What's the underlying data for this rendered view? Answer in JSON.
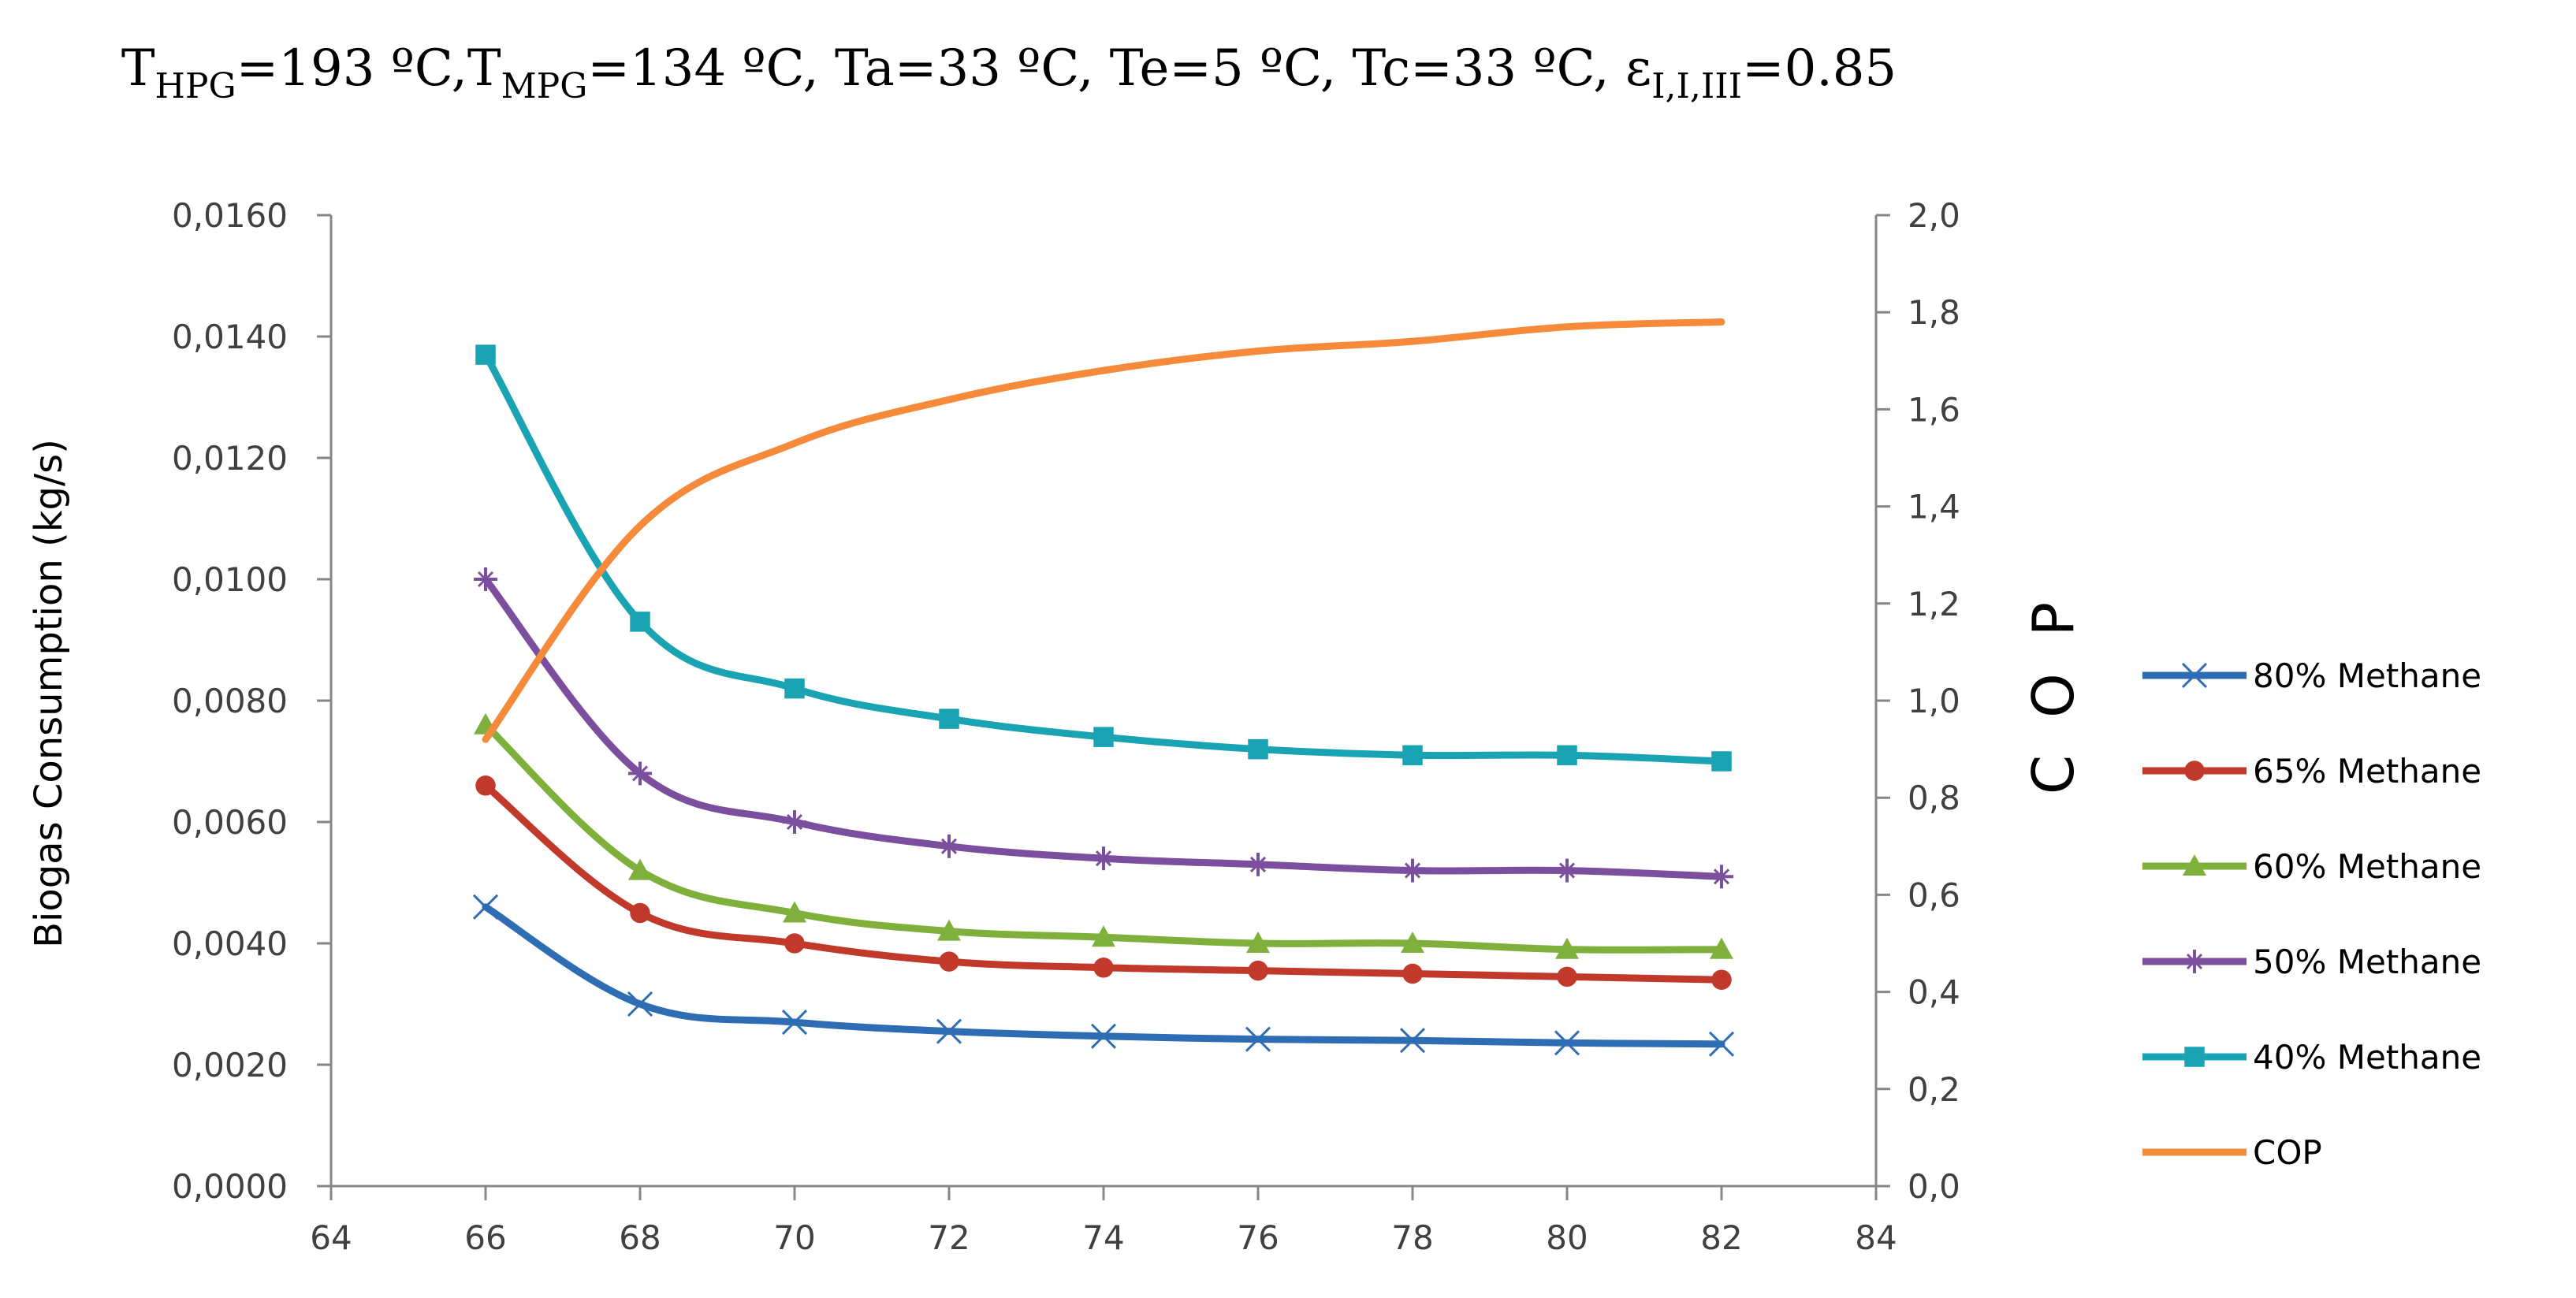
{
  "chart_data": {
    "type": "line",
    "title": "THPG=193 ºC,TMPG=134 ºC, Ta=33 ºC, Te=5 ºC, Tc=33 ºC, εI,I,III=0.85",
    "title_parts": {
      "t_hpg_main": "T",
      "t_hpg_sub": "HPG",
      "t_hpg_rest": "=193 ºC,",
      "t_mpg_main": "T",
      "t_mpg_sub": "MPG",
      "t_mpg_rest": "=134 ºC, Ta=33 ºC, Te=5 ºC, Tc=33 ºC, ",
      "eps_main": "ε",
      "eps_sub": "I,I,III",
      "eps_rest": "=0.85"
    },
    "xlabel": "",
    "ylabel": "Biogas Consumption (kg/s)",
    "y2label": "C O P",
    "xlim": [
      64,
      84
    ],
    "ylim": [
      0,
      0.016
    ],
    "y2lim": [
      0,
      2.0
    ],
    "x_ticks": [
      "64",
      "66",
      "68",
      "70",
      "72",
      "74",
      "76",
      "78",
      "80",
      "82",
      "84"
    ],
    "x_tick_values": [
      64,
      66,
      68,
      70,
      72,
      74,
      76,
      78,
      80,
      82,
      84
    ],
    "y_ticks": [
      "0,0000",
      "0,0020",
      "0,0040",
      "0,0060",
      "0,0080",
      "0,0100",
      "0,0120",
      "0,0140",
      "0,0160"
    ],
    "y_tick_values": [
      0,
      0.002,
      0.004,
      0.006,
      0.008,
      0.01,
      0.012,
      0.014,
      0.016
    ],
    "y2_ticks": [
      "0,0",
      "0,2",
      "0,4",
      "0,6",
      "0,8",
      "1,0",
      "1,2",
      "1,4",
      "1,6",
      "1,8",
      "2,0"
    ],
    "y2_tick_values": [
      0,
      0.2,
      0.4,
      0.6,
      0.8,
      1.0,
      1.2,
      1.4,
      1.6,
      1.8,
      2.0
    ],
    "x": [
      66,
      68,
      70,
      72,
      74,
      76,
      78,
      80,
      82
    ],
    "legend_position": "right",
    "series": [
      {
        "name": "80% Methane",
        "axis": "left",
        "marker": "x",
        "color": "#2e6db4",
        "values": [
          0.0046,
          0.003,
          0.0027,
          0.00255,
          0.00247,
          0.00242,
          0.0024,
          0.00236,
          0.00234
        ]
      },
      {
        "name": "65% Methane",
        "axis": "left",
        "marker": "circle",
        "color": "#c0392b",
        "values": [
          0.0066,
          0.0045,
          0.004,
          0.0037,
          0.0036,
          0.00355,
          0.0035,
          0.00345,
          0.0034
        ]
      },
      {
        "name": "60% Methane",
        "axis": "left",
        "marker": "triangle",
        "color": "#7fb03c",
        "values": [
          0.0076,
          0.0052,
          0.0045,
          0.0042,
          0.0041,
          0.004,
          0.004,
          0.0039,
          0.0039
        ]
      },
      {
        "name": "50% Methane",
        "axis": "left",
        "marker": "star",
        "color": "#7b4f9e",
        "values": [
          0.01,
          0.0068,
          0.006,
          0.0056,
          0.0054,
          0.0053,
          0.0052,
          0.0052,
          0.0051
        ]
      },
      {
        "name": "40% Methane",
        "axis": "left",
        "marker": "square",
        "color": "#1aa3b3",
        "values": [
          0.0137,
          0.0093,
          0.0082,
          0.0077,
          0.0074,
          0.0072,
          0.0071,
          0.0071,
          0.007
        ]
      },
      {
        "name": "COP",
        "axis": "right",
        "marker": "none",
        "color": "#f58a3a",
        "values": [
          0.92,
          1.36,
          1.53,
          1.62,
          1.68,
          1.72,
          1.74,
          1.77,
          1.78
        ]
      }
    ]
  }
}
